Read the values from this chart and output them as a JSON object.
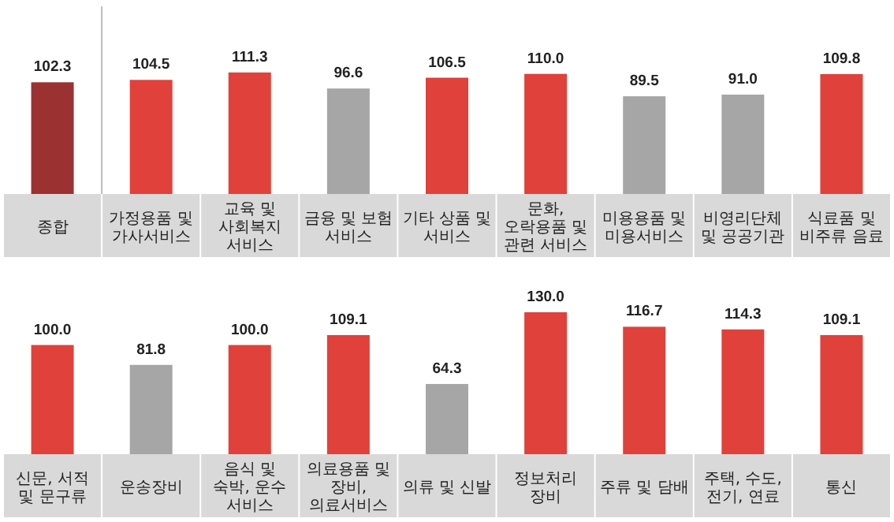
{
  "chart_data": [
    {
      "type": "bar",
      "categories": [
        "종합",
        "가정용품 및 가사서비스",
        "교육 및 사회복지 서비스",
        "금융 및 보험 서비스",
        "기타 상품 및 서비스",
        "문화, 오락용품 및 관련 서비스",
        "미용용품 및 미용서비스",
        "비영리단체 및 공공기관",
        "식료품 및 비주류 음료"
      ],
      "values": [
        102.3,
        104.5,
        111.3,
        96.6,
        106.5,
        110.0,
        89.5,
        91.0,
        109.8
      ],
      "value_labels": [
        "102.3",
        "104.5",
        "111.3",
        "96.6",
        "106.5",
        "110.0",
        "89.5",
        "91.0",
        "109.8"
      ],
      "colors": [
        "#9b3131",
        "#e0413a",
        "#e0413a",
        "#a6a6a6",
        "#e0413a",
        "#e0413a",
        "#a6a6a6",
        "#a6a6a6",
        "#e0413a"
      ]
    },
    {
      "type": "bar",
      "categories": [
        "신문, 서적 및 문구류",
        "운송장비",
        "음식 및 숙박, 운수 서비스",
        "의료용품 및 장비, 의료서비스",
        "의류 및 신발",
        "정보처리 장비",
        "주류 및 담배",
        "주택, 수도, 전기, 연료",
        "통신"
      ],
      "values": [
        100.0,
        81.8,
        100.0,
        109.1,
        64.3,
        130.0,
        116.7,
        114.3,
        109.1
      ],
      "value_labels": [
        "100.0",
        "81.8",
        "100.0",
        "109.1",
        "64.3",
        "130.0",
        "116.7",
        "114.3",
        "109.1"
      ],
      "colors": [
        "#e0413a",
        "#a6a6a6",
        "#e0413a",
        "#e0413a",
        "#a6a6a6",
        "#e0413a",
        "#e0413a",
        "#e0413a",
        "#e0413a"
      ]
    }
  ]
}
